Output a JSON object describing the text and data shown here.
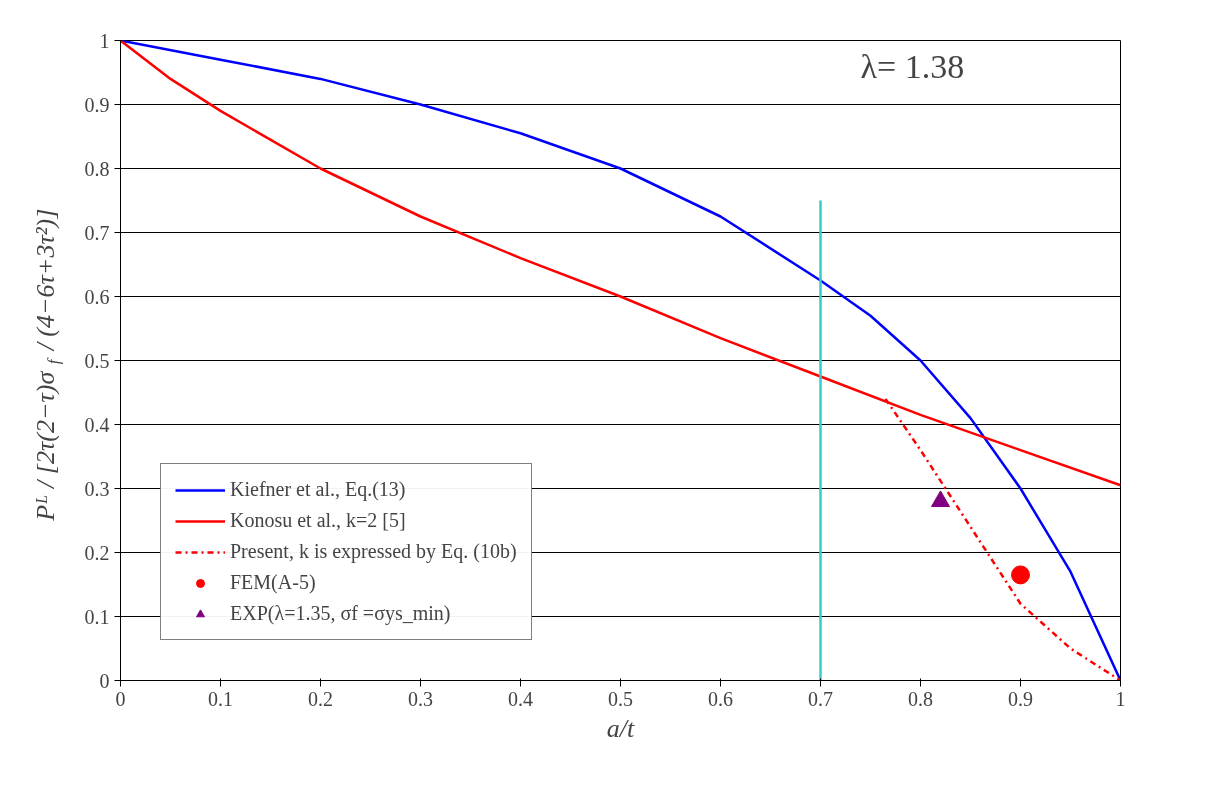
{
  "chart_data": {
    "type": "line",
    "xlabel": "a/t",
    "ylabel": "Pᴸ / [2τ(2−τ)σ$_{f}$ / (4−6τ+3τ²)]",
    "annotations": [
      "λ= 1.38"
    ],
    "xlim": [
      0,
      1
    ],
    "ylim": [
      0,
      1
    ],
    "xticks": [
      0,
      0.1,
      0.2,
      0.3,
      0.4,
      0.5,
      0.6,
      0.7,
      0.8,
      0.9,
      1
    ],
    "yticks": [
      0,
      0.1,
      0.2,
      0.3,
      0.4,
      0.5,
      0.6,
      0.7,
      0.8,
      0.9,
      1
    ],
    "grid": "y",
    "legend": "bottom left",
    "series": [
      {
        "name": "Kiefner et al., Eq.(13)",
        "color": "#0000ff",
        "x": [
          0,
          0.1,
          0.2,
          0.3,
          0.4,
          0.5,
          0.6,
          0.7,
          0.75,
          0.8,
          0.85,
          0.9,
          0.95,
          1
        ],
        "values": [
          1,
          0.97,
          0.94,
          0.9,
          0.855,
          0.8,
          0.725,
          0.625,
          0.57,
          0.5,
          0.41,
          0.3,
          0.17,
          0
        ]
      },
      {
        "name": "Konosu et al., k=2 [5]",
        "color": "#ff0000",
        "x": [
          0,
          0.05,
          0.1,
          0.2,
          0.3,
          0.4,
          0.5,
          0.6,
          0.7,
          0.8,
          0.9,
          1
        ],
        "values": [
          1,
          0.94,
          0.89,
          0.8,
          0.725,
          0.66,
          0.6,
          0.535,
          0.475,
          0.415,
          0.36,
          0.305
        ]
      },
      {
        "name": "Present, k is expressed by Eq. (10b)",
        "color": "#ff0000",
        "line_style": "dashdot",
        "x": [
          0.765,
          0.8,
          0.85,
          0.9,
          0.95,
          1
        ],
        "values": [
          0.44,
          0.36,
          0.24,
          0.12,
          0.05,
          0
        ]
      },
      {
        "name": "FEM(A-5)",
        "type": "scatter",
        "marker": "circle",
        "color": "#ff0000",
        "x": [
          0.9
        ],
        "values": [
          0.165
        ]
      },
      {
        "name": "EXP(λ=1.35, σf =σys_min)",
        "type": "scatter",
        "marker": "triangle",
        "color": "#800080",
        "x": [
          0.82
        ],
        "values": [
          0.28
        ]
      },
      {
        "color": "#33cccc",
        "x": [
          0.7,
          0.7
        ],
        "values": [
          0,
          0.75
        ]
      }
    ]
  }
}
